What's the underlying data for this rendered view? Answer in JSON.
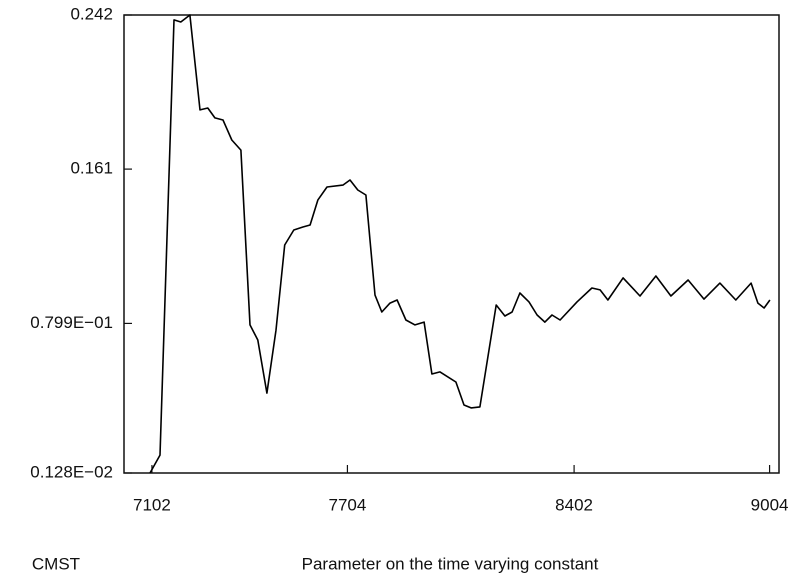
{
  "chart_data": {
    "type": "line",
    "y_label": "CMST",
    "x_label": "Parameter on the time varying constant",
    "xlim": [
      7016,
      9033
    ],
    "xticks": [
      7102,
      7704,
      8402,
      9004
    ],
    "ylim": [
      0.00128,
      0.242
    ],
    "yticks": [
      {
        "value": 0.00128,
        "label": "0.128E−02"
      },
      {
        "value": 0.0799,
        "label": "0.799E−01"
      },
      0.161,
      0.242
    ],
    "grid": false,
    "series": [
      {
        "color": "#000000",
        "x": [
          7096,
          7127,
          7170,
          7191,
          7219,
          7250,
          7274,
          7296,
          7321,
          7348,
          7376,
          7404,
          7428,
          7456,
          7484,
          7511,
          7539,
          7567,
          7589,
          7613,
          7641,
          7690,
          7712,
          7736,
          7761,
          7789,
          7810,
          7835,
          7857,
          7884,
          7912,
          7940,
          7964,
          7989,
          8038,
          8063,
          8085,
          8112,
          8162,
          8189,
          8211,
          8235,
          8263,
          8288,
          8312,
          8334,
          8359,
          8411,
          8457,
          8482,
          8506,
          8553,
          8605,
          8654,
          8700,
          8753,
          8802,
          8851,
          8900,
          8947,
          8968,
          8987,
          9005
        ],
        "values": [
          0.00128,
          0.0107,
          0.2394,
          0.2383,
          0.242,
          0.1921,
          0.1931,
          0.1879,
          0.1868,
          0.1763,
          0.171,
          0.0791,
          0.0712,
          0.0433,
          0.0764,
          0.1211,
          0.129,
          0.1306,
          0.1316,
          0.1448,
          0.1516,
          0.1526,
          0.1553,
          0.15,
          0.1474,
          0.0948,
          0.0859,
          0.0906,
          0.0922,
          0.0817,
          0.0791,
          0.0806,
          0.0533,
          0.0544,
          0.0491,
          0.037,
          0.0355,
          0.036,
          0.0896,
          0.0838,
          0.0859,
          0.0959,
          0.0912,
          0.0843,
          0.0806,
          0.0843,
          0.0817,
          0.0912,
          0.0985,
          0.0975,
          0.0922,
          0.1038,
          0.0943,
          0.1048,
          0.0943,
          0.1027,
          0.0927,
          0.1011,
          0.0922,
          0.1011,
          0.0906,
          0.088,
          0.0922
        ]
      }
    ]
  }
}
